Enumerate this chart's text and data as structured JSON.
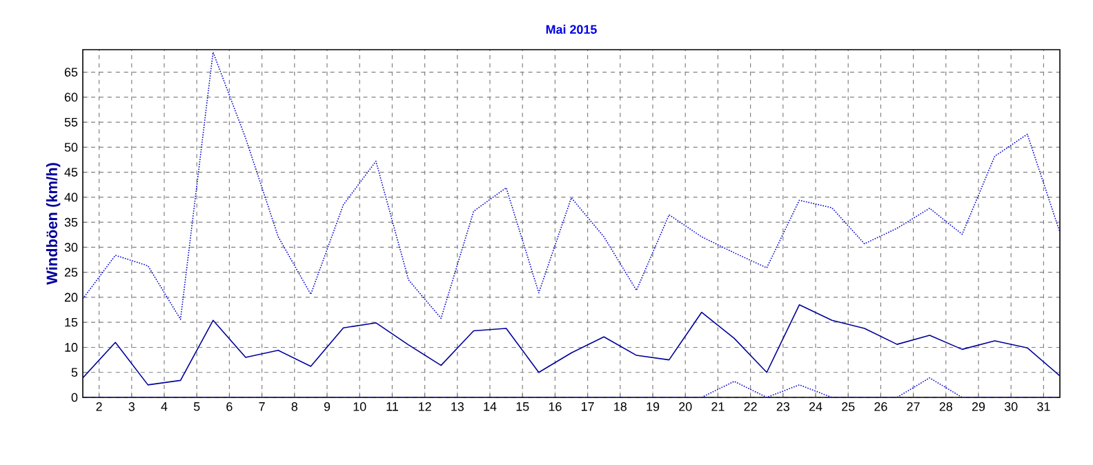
{
  "chart_data": {
    "type": "line",
    "title": "Mai 2015",
    "ylabel": "Windböen (km/h)",
    "x": [
      1.5,
      2.5,
      3.5,
      4.5,
      5.5,
      6.5,
      7.5,
      8.5,
      9.5,
      10.5,
      11.5,
      12.5,
      13.5,
      14.5,
      15.5,
      16.5,
      17.5,
      18.5,
      19.5,
      20.5,
      21.5,
      22.5,
      23.5,
      24.5,
      25.5,
      26.5,
      27.5,
      28.5,
      29.5,
      30.5,
      31.5
    ],
    "xlim": [
      1.5,
      31.5
    ],
    "xticks": [
      2,
      3,
      4,
      5,
      6,
      7,
      8,
      9,
      10,
      11,
      12,
      13,
      14,
      15,
      16,
      17,
      18,
      19,
      20,
      21,
      22,
      23,
      24,
      25,
      26,
      27,
      28,
      29,
      30,
      31
    ],
    "ylim": [
      0,
      69.5
    ],
    "yticks": [
      0,
      5,
      10,
      15,
      20,
      25,
      30,
      35,
      40,
      45,
      50,
      55,
      60,
      65
    ],
    "grid": true,
    "series": [
      {
        "color": "#0000cc",
        "line_style": "dotted",
        "values": [
          19.7,
          28.4,
          26.3,
          15.6,
          69,
          51.8,
          32.1,
          20.6,
          38.5,
          47.2,
          23.5,
          15.8,
          37.2,
          41.9,
          20.9,
          39.9,
          32.1,
          21.4,
          36.5,
          32.1,
          28.9,
          25.9,
          39.4,
          37.9,
          30.7,
          33.8,
          37.8,
          32.6,
          48.2,
          52.6,
          33.0
        ]
      },
      {
        "color": "#000099",
        "line_style": "solid",
        "values": [
          3.9,
          11.0,
          2.5,
          3.4,
          15.4,
          8.0,
          9.4,
          6.2,
          13.9,
          14.9,
          10.5,
          6.4,
          13.3,
          13.8,
          5.0,
          8.9,
          12.1,
          8.4,
          7.5,
          17.0,
          11.8,
          5.0,
          18.5,
          15.4,
          13.8,
          10.6,
          12.4,
          9.6,
          11.3,
          9.9,
          4.3
        ]
      },
      {
        "color": "#0000cc",
        "line_style": "dotted",
        "values": [
          0,
          0,
          0,
          0,
          0,
          0,
          0,
          0,
          0,
          0,
          0,
          0,
          0,
          0,
          0,
          0,
          0,
          0,
          0,
          0,
          3.2,
          0,
          2.5,
          0,
          0,
          0,
          3.9,
          0,
          0,
          0,
          0
        ]
      }
    ]
  }
}
